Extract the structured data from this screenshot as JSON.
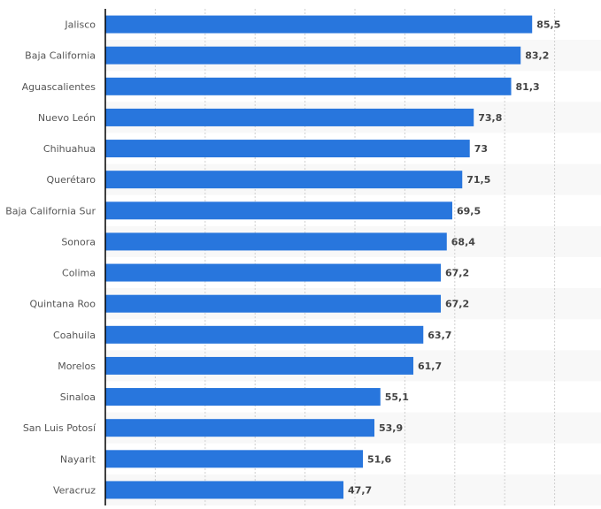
{
  "chart_data": {
    "type": "bar",
    "orientation": "horizontal",
    "categories": [
      "Jalisco",
      "Baja California",
      "Aguascalientes",
      "Nuevo León",
      "Chihuahua",
      "Querétaro",
      "Baja California Sur",
      "Sonora",
      "Colima",
      "Quintana Roo",
      "Coahuila",
      "Morelos",
      "Sinaloa",
      "San Luis Potosí",
      "Nayarit",
      "Veracruz"
    ],
    "values": [
      85.5,
      83.2,
      81.3,
      73.8,
      73,
      71.5,
      69.5,
      68.4,
      67.2,
      67.2,
      63.7,
      61.7,
      55.1,
      53.9,
      51.6,
      47.7
    ],
    "value_labels": [
      "85,5",
      "83,2",
      "81,3",
      "73,8",
      "73",
      "71,5",
      "69,5",
      "68,4",
      "67,2",
      "67,2",
      "63,7",
      "61,7",
      "55,1",
      "53,9",
      "51,6",
      "47,7"
    ],
    "title": "",
    "xlabel": "",
    "ylabel": "",
    "xlim": [
      0,
      99
    ],
    "grid": true,
    "grid_step": 10,
    "bar_color": "#2876dd",
    "stripe_color": "#f8f8f8"
  }
}
